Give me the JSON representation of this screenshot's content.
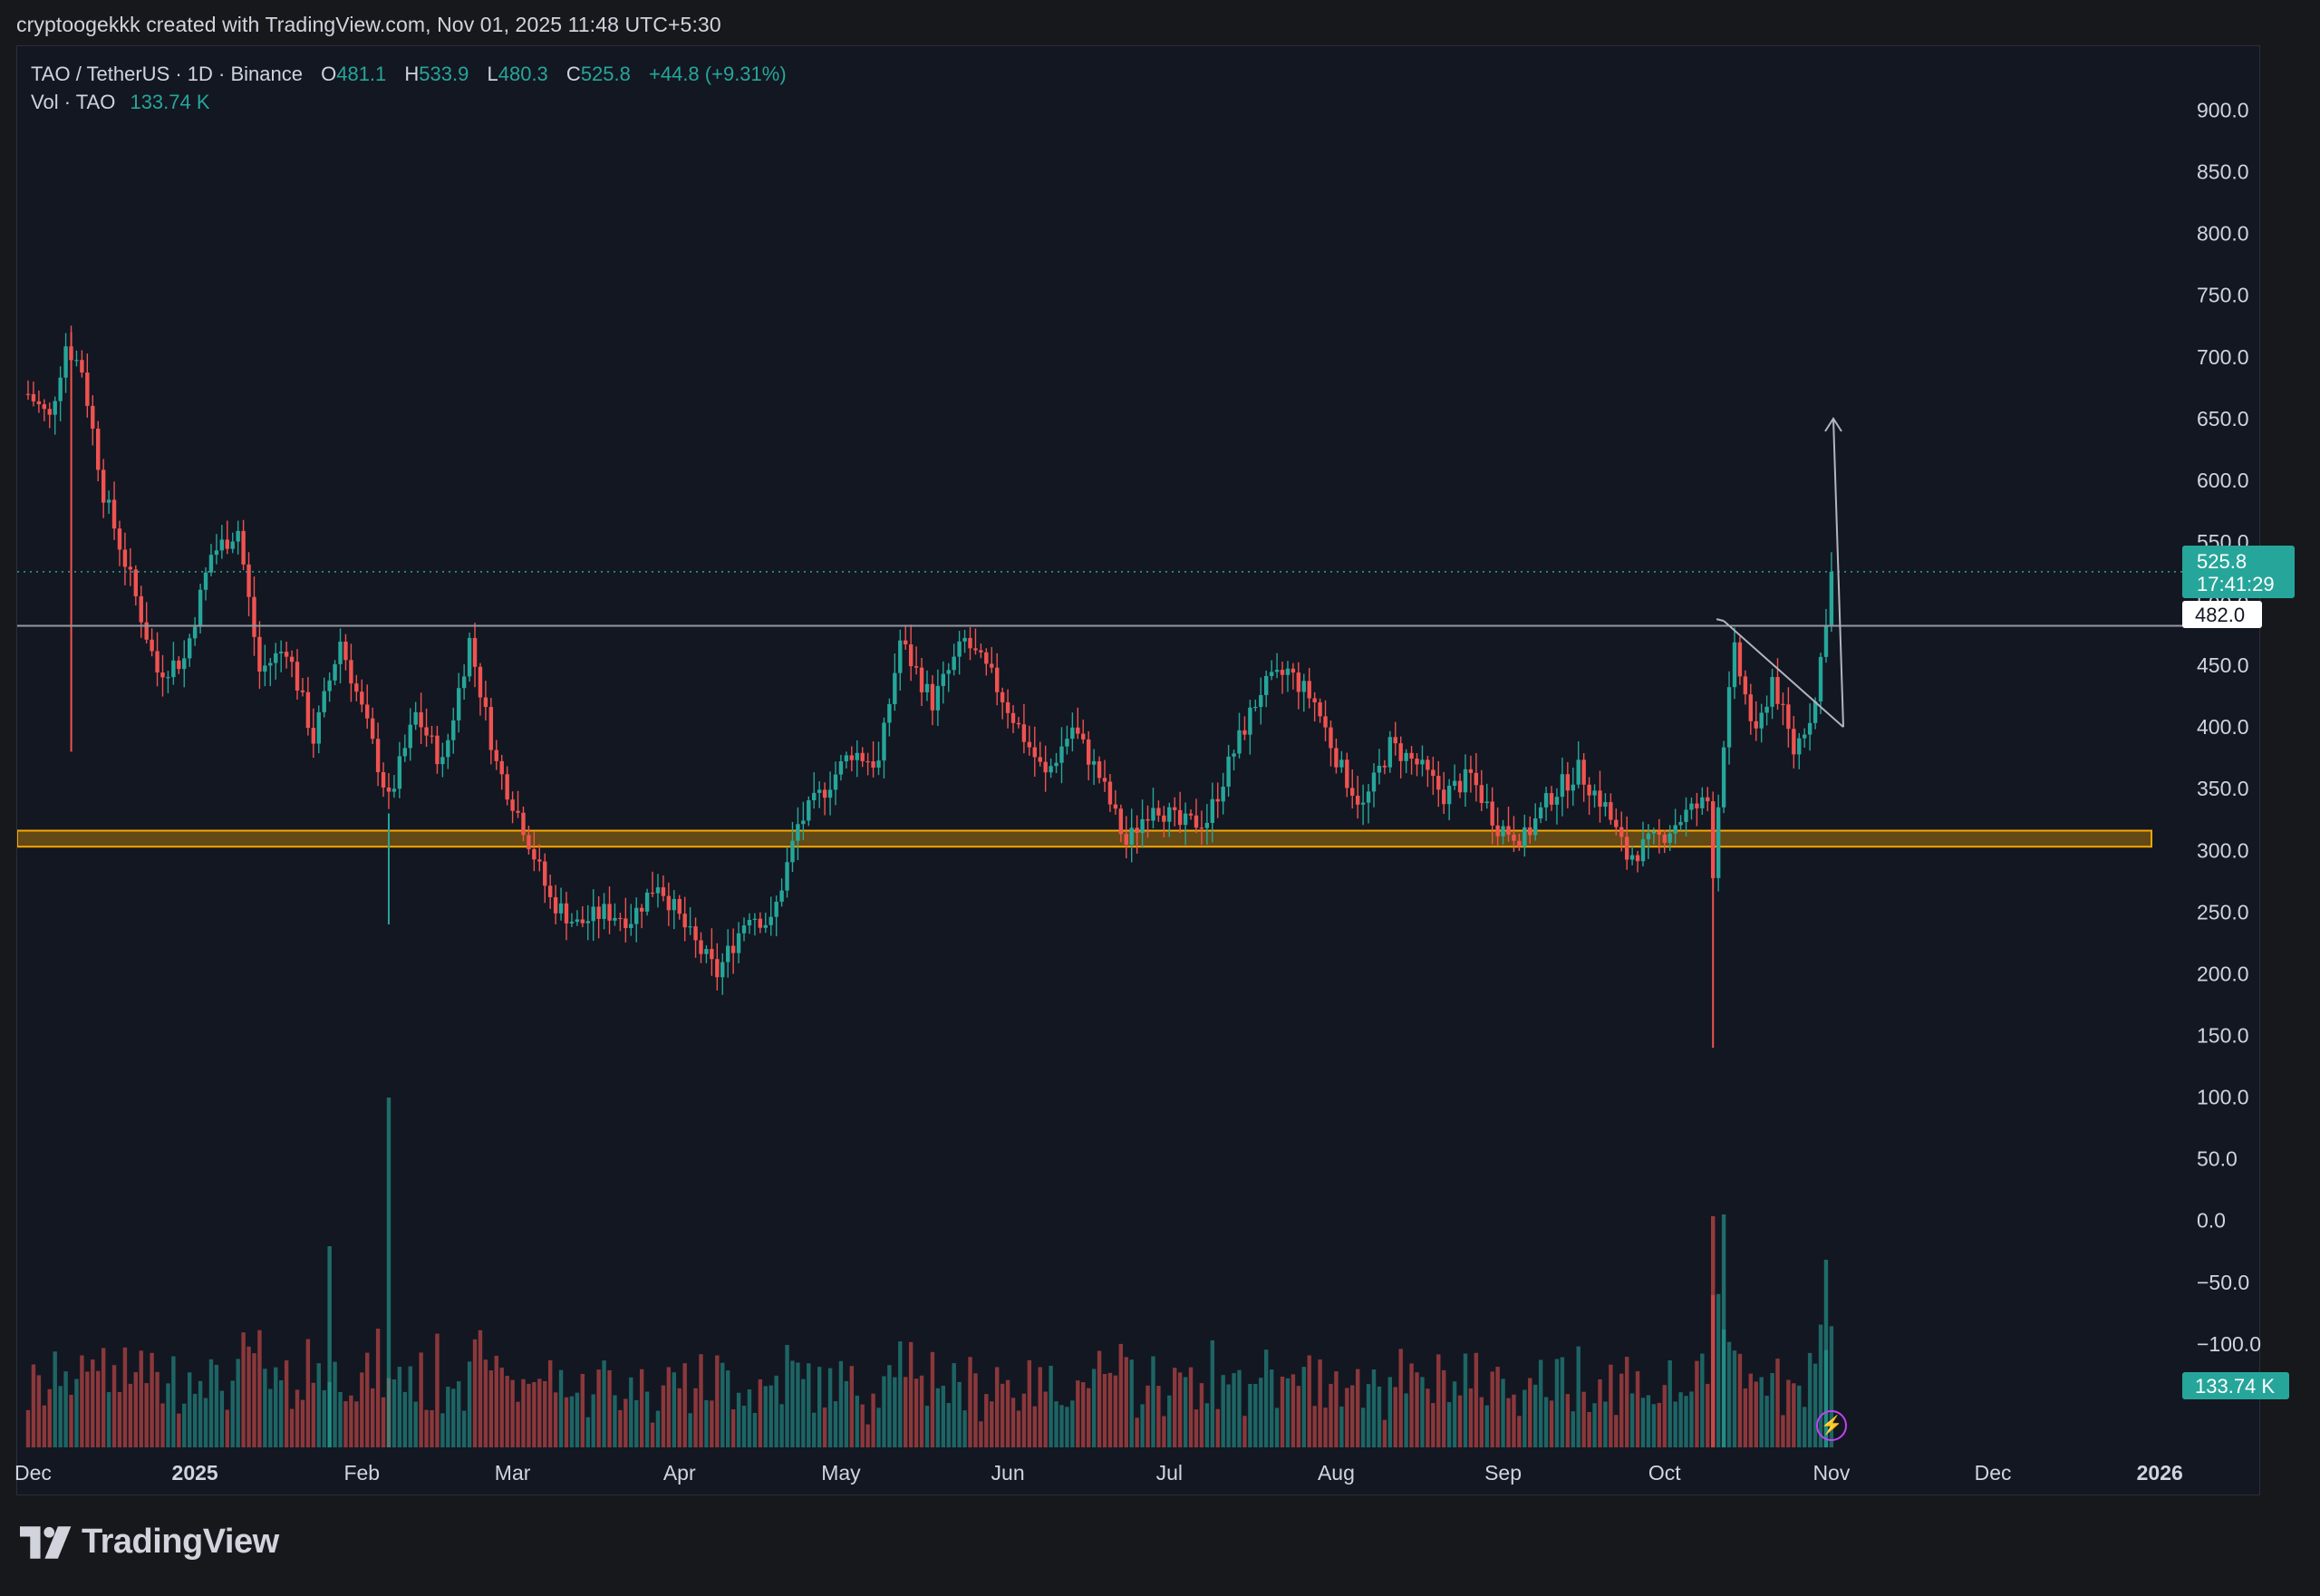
{
  "header": {
    "caption": "cryptoogekkk created with TradingView.com, Nov 01, 2025 11:48 UTC+5:30"
  },
  "legend": {
    "symbol": "TAO / TetherUS · 1D · Binance",
    "open_label": "O",
    "open_value": "481.1",
    "high_label": "H",
    "high_value": "533.9",
    "low_label": "L",
    "low_value": "480.3",
    "close_label": "C",
    "close_value": "525.8",
    "change": "+44.8 (+9.31%)",
    "vol_label": "Vol · TAO",
    "vol_value": "133.74 K"
  },
  "brand": {
    "name": "TradingView"
  },
  "colors": {
    "up": "#26a69a",
    "down": "#ef5350",
    "background": "#131722",
    "zone": "#f7a600"
  },
  "chart_data": {
    "type": "candlestick",
    "symbol": "TAO / TetherUS",
    "interval": "1D",
    "exchange": "Binance",
    "price_axis": {
      "ticks": [
        900,
        850,
        800,
        750,
        700,
        650,
        600,
        550,
        500,
        450,
        400,
        350,
        300,
        250,
        200,
        150,
        100,
        50,
        0,
        -50,
        -100
      ],
      "labels": [
        "900.0",
        "850.0",
        "800.0",
        "750.0",
        "700.0",
        "650.0",
        "600.0",
        "550.0",
        "500.0",
        "450.0",
        "400.0",
        "350.0",
        "300.0",
        "250.0",
        "200.0",
        "150.0",
        "100.0",
        "50.0",
        "0.0",
        "−50.0",
        "−100.0"
      ],
      "range": [
        -160,
        930
      ]
    },
    "time_axis": {
      "labels": [
        "Dec",
        "2025",
        "Feb",
        "Mar",
        "Apr",
        "May",
        "Jun",
        "Jul",
        "Aug",
        "Sep",
        "Oct",
        "Nov",
        "Dec",
        "2026"
      ],
      "dates": [
        "2024-12-01",
        "2025-01-01",
        "2025-02-01",
        "2025-03-01",
        "2025-04-01",
        "2025-05-01",
        "2025-06-01",
        "2025-07-01",
        "2025-08-01",
        "2025-09-01",
        "2025-10-01",
        "2025-11-01",
        "2025-12-01",
        "2026-01-01"
      ]
    },
    "price_path_points": [
      {
        "date": "2024-12-01",
        "close": 670
      },
      {
        "date": "2024-12-05",
        "close": 650
      },
      {
        "date": "2024-12-08",
        "close": 710
      },
      {
        "date": "2024-12-11",
        "close": 690
      },
      {
        "date": "2024-12-15",
        "close": 590
      },
      {
        "date": "2024-12-20",
        "close": 520
      },
      {
        "date": "2024-12-25",
        "close": 445
      },
      {
        "date": "2024-12-30",
        "close": 455
      },
      {
        "date": "2025-01-04",
        "close": 540
      },
      {
        "date": "2025-01-09",
        "close": 560
      },
      {
        "date": "2025-01-13",
        "close": 445
      },
      {
        "date": "2025-01-18",
        "close": 465
      },
      {
        "date": "2025-01-23",
        "close": 390
      },
      {
        "date": "2025-01-28",
        "close": 470
      },
      {
        "date": "2025-02-02",
        "close": 400
      },
      {
        "date": "2025-02-06",
        "close": 340
      },
      {
        "date": "2025-02-11",
        "close": 410
      },
      {
        "date": "2025-02-16",
        "close": 370
      },
      {
        "date": "2025-02-21",
        "close": 470
      },
      {
        "date": "2025-02-26",
        "close": 370
      },
      {
        "date": "2025-03-03",
        "close": 320
      },
      {
        "date": "2025-03-08",
        "close": 260
      },
      {
        "date": "2025-03-13",
        "close": 240
      },
      {
        "date": "2025-03-18",
        "close": 250
      },
      {
        "date": "2025-03-23",
        "close": 245
      },
      {
        "date": "2025-03-28",
        "close": 275
      },
      {
        "date": "2025-04-03",
        "close": 230
      },
      {
        "date": "2025-04-08",
        "close": 200
      },
      {
        "date": "2025-04-14",
        "close": 250
      },
      {
        "date": "2025-04-18",
        "close": 240
      },
      {
        "date": "2025-04-23",
        "close": 320
      },
      {
        "date": "2025-04-28",
        "close": 350
      },
      {
        "date": "2025-05-03",
        "close": 380
      },
      {
        "date": "2025-05-08",
        "close": 370
      },
      {
        "date": "2025-05-12",
        "close": 470
      },
      {
        "date": "2025-05-18",
        "close": 420
      },
      {
        "date": "2025-05-24",
        "close": 470
      },
      {
        "date": "2025-05-29",
        "close": 440
      },
      {
        "date": "2025-06-03",
        "close": 400
      },
      {
        "date": "2025-06-08",
        "close": 360
      },
      {
        "date": "2025-06-13",
        "close": 400
      },
      {
        "date": "2025-06-18",
        "close": 360
      },
      {
        "date": "2025-06-23",
        "close": 305
      },
      {
        "date": "2025-06-28",
        "close": 340
      },
      {
        "date": "2025-07-03",
        "close": 320
      },
      {
        "date": "2025-07-08",
        "close": 325
      },
      {
        "date": "2025-07-13",
        "close": 380
      },
      {
        "date": "2025-07-18",
        "close": 430
      },
      {
        "date": "2025-07-23",
        "close": 445
      },
      {
        "date": "2025-07-28",
        "close": 420
      },
      {
        "date": "2025-08-02",
        "close": 365
      },
      {
        "date": "2025-08-06",
        "close": 335
      },
      {
        "date": "2025-08-11",
        "close": 385
      },
      {
        "date": "2025-08-16",
        "close": 370
      },
      {
        "date": "2025-08-21",
        "close": 345
      },
      {
        "date": "2025-08-26",
        "close": 360
      },
      {
        "date": "2025-08-31",
        "close": 320
      },
      {
        "date": "2025-09-05",
        "close": 310
      },
      {
        "date": "2025-09-10",
        "close": 345
      },
      {
        "date": "2025-09-15",
        "close": 365
      },
      {
        "date": "2025-09-20",
        "close": 335
      },
      {
        "date": "2025-09-24",
        "close": 295
      },
      {
        "date": "2025-09-30",
        "close": 310
      },
      {
        "date": "2025-10-05",
        "close": 330
      },
      {
        "date": "2025-10-09",
        "close": 340
      },
      {
        "date": "2025-10-10",
        "close": 285
      },
      {
        "date": "2025-10-12",
        "close": 390
      },
      {
        "date": "2025-10-14",
        "close": 460
      },
      {
        "date": "2025-10-18",
        "close": 390
      },
      {
        "date": "2025-10-21",
        "close": 440
      },
      {
        "date": "2025-10-25",
        "close": 380
      },
      {
        "date": "2025-10-29",
        "close": 420
      },
      {
        "date": "2025-11-01",
        "close": 525.8
      }
    ],
    "annotations": {
      "horizontal_line": 482.0,
      "horizontal_line_label": "482.0",
      "support_zone": [
        303,
        316
      ],
      "last_price": 525.8,
      "last_price_label": "525.8",
      "countdown": "17:41:29",
      "volume_label": "133.74 K",
      "projection_target": 650,
      "triangle": {
        "start_date": "2025-10-12",
        "start_price": 486,
        "end_date": "2025-11-02",
        "end_price": 400
      }
    }
  }
}
